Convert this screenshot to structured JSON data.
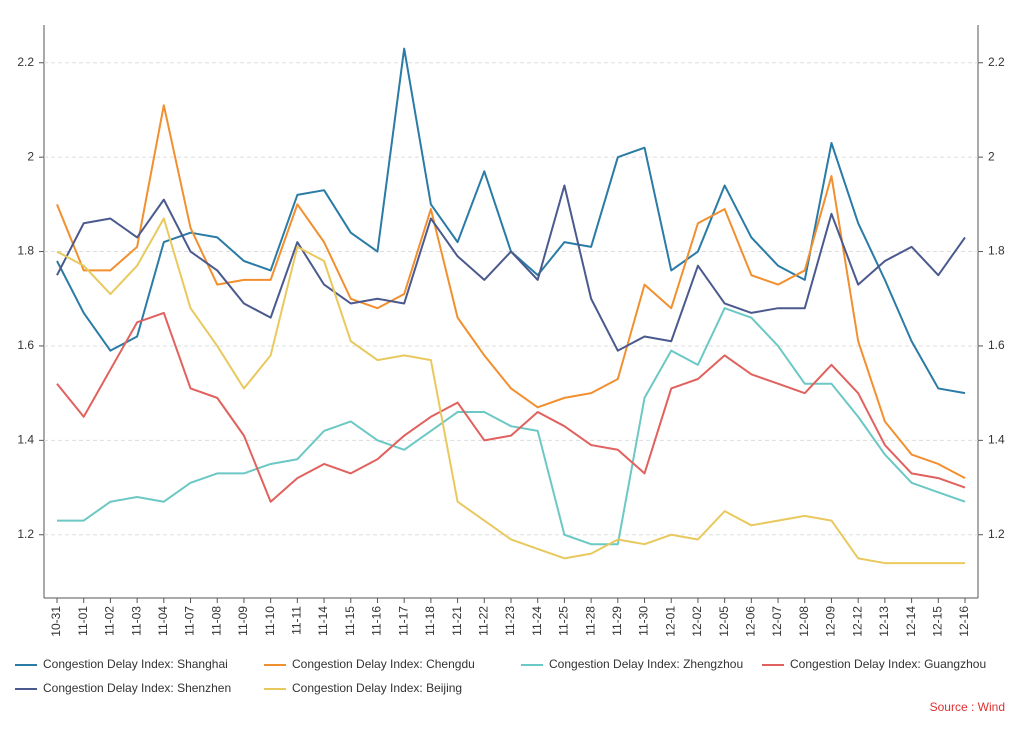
{
  "chart_data": {
    "type": "line",
    "categories": [
      "10-31",
      "11-01",
      "11-02",
      "11-03",
      "11-04",
      "11-07",
      "11-08",
      "11-09",
      "11-10",
      "11-11",
      "11-14",
      "11-15",
      "11-16",
      "11-17",
      "11-18",
      "11-21",
      "11-22",
      "11-23",
      "11-24",
      "11-25",
      "11-28",
      "11-29",
      "11-30",
      "12-01",
      "12-02",
      "12-05",
      "12-06",
      "12-07",
      "12-08",
      "12-09",
      "12-12",
      "12-13",
      "12-14",
      "12-15",
      "12-16"
    ],
    "series": [
      {
        "name": "Congestion Delay Index: Shanghai",
        "color": "#2a7ba5",
        "values": [
          1.78,
          1.67,
          1.59,
          1.62,
          1.82,
          1.84,
          1.83,
          1.78,
          1.76,
          1.92,
          1.93,
          1.84,
          1.8,
          2.23,
          1.9,
          1.82,
          1.97,
          1.8,
          1.75,
          1.82,
          1.81,
          2.0,
          2.02,
          1.76,
          1.8,
          1.94,
          1.83,
          1.77,
          1.74,
          2.03,
          1.86,
          1.74,
          1.61,
          1.51,
          1.5
        ]
      },
      {
        "name": "Congestion Delay Index: Chengdu",
        "color": "#f28f2f",
        "values": [
          1.9,
          1.76,
          1.76,
          1.81,
          2.11,
          1.85,
          1.73,
          1.74,
          1.74,
          1.9,
          1.82,
          1.7,
          1.68,
          1.71,
          1.89,
          1.66,
          1.58,
          1.51,
          1.47,
          1.49,
          1.5,
          1.53,
          1.73,
          1.68,
          1.86,
          1.89,
          1.75,
          1.73,
          1.76,
          1.96,
          1.61,
          1.44,
          1.37,
          1.35,
          1.32
        ]
      },
      {
        "name": "Congestion Delay Index: Zhengzhou",
        "color": "#6cc8c4",
        "values": [
          1.23,
          1.23,
          1.27,
          1.28,
          1.27,
          1.31,
          1.33,
          1.33,
          1.35,
          1.36,
          1.42,
          1.44,
          1.4,
          1.38,
          1.42,
          1.46,
          1.46,
          1.43,
          1.42,
          1.2,
          1.18,
          1.18,
          1.49,
          1.59,
          1.56,
          1.68,
          1.66,
          1.6,
          1.52,
          1.52,
          1.45,
          1.37,
          1.31,
          1.29,
          1.27
        ]
      },
      {
        "name": "Congestion Delay Index: Guangzhou",
        "color": "#e0615d",
        "values": [
          1.52,
          1.45,
          1.55,
          1.65,
          1.67,
          1.51,
          1.49,
          1.41,
          1.27,
          1.32,
          1.35,
          1.33,
          1.36,
          1.41,
          1.45,
          1.48,
          1.4,
          1.41,
          1.46,
          1.43,
          1.39,
          1.38,
          1.33,
          1.51,
          1.53,
          1.58,
          1.54,
          1.52,
          1.5,
          1.56,
          1.5,
          1.39,
          1.33,
          1.32,
          1.3
        ]
      },
      {
        "name": "Congestion Delay Index: Shenzhen",
        "color": "#4b5a8e",
        "values": [
          1.75,
          1.86,
          1.87,
          1.83,
          1.91,
          1.8,
          1.76,
          1.69,
          1.66,
          1.82,
          1.73,
          1.69,
          1.7,
          1.69,
          1.87,
          1.79,
          1.74,
          1.8,
          1.74,
          1.94,
          1.7,
          1.59,
          1.62,
          1.61,
          1.77,
          1.69,
          1.67,
          1.68,
          1.68,
          1.88,
          1.73,
          1.78,
          1.81,
          1.75,
          1.83
        ]
      },
      {
        "name": "Congestion Delay Index: Beijing",
        "color": "#e9c95e",
        "values": [
          1.8,
          1.77,
          1.71,
          1.77,
          1.87,
          1.68,
          1.6,
          1.51,
          1.58,
          1.81,
          1.78,
          1.61,
          1.57,
          1.58,
          1.57,
          1.27,
          1.23,
          1.19,
          1.17,
          1.15,
          1.16,
          1.19,
          1.18,
          1.2,
          1.19,
          1.25,
          1.22,
          1.23,
          1.24,
          1.23,
          1.15,
          1.14,
          1.14,
          1.14,
          1.14
        ]
      }
    ],
    "ylim": [
      1.066,
      2.28
    ],
    "yticks": [
      1.2,
      1.4,
      1.6,
      1.8,
      2,
      2.2
    ],
    "y2lim": [
      1.066,
      2.28
    ],
    "y2ticks": [
      1.2,
      1.4,
      1.6,
      1.8,
      2,
      2.2
    ],
    "grid": true,
    "legend": "bottom",
    "source": "Source : Wind",
    "source_color": "#e03030"
  }
}
